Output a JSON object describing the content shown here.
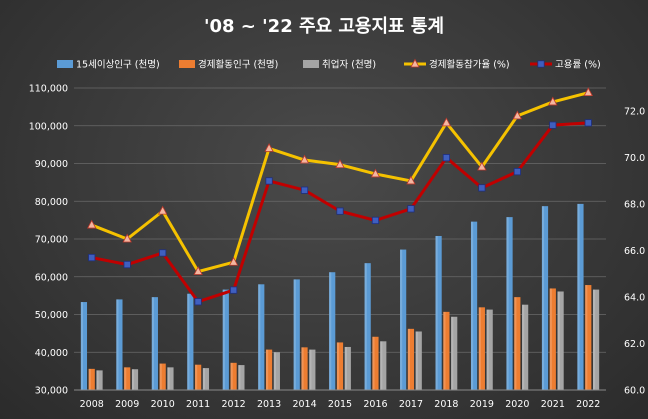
{
  "chart_data": {
    "type": "bar",
    "title": "'08 ~ '22 주요 고용지표 통계",
    "categories": [
      "2008",
      "2009",
      "2010",
      "2011",
      "2012",
      "2013",
      "2014",
      "2015",
      "2016",
      "2017",
      "2018",
      "2019",
      "2020",
      "2021",
      "2022"
    ],
    "y_left": {
      "ylim": [
        30000,
        110000
      ],
      "ticks": [
        "30,000",
        "40,000",
        "50,000",
        "60,000",
        "70,000",
        "80,000",
        "90,000",
        "100,000",
        "110,000"
      ]
    },
    "y_right": {
      "ylim": [
        60.0,
        73.0
      ],
      "ticks": [
        "60.0",
        "62.0",
        "64.0",
        "66.0",
        "68.0",
        "70.0",
        "72.0"
      ]
    },
    "grid": true,
    "legend_position": "top",
    "series": [
      {
        "name": "15세이상인구 (천명)",
        "kind": "bar",
        "axis": "left",
        "color": "#5b9bd5",
        "values": [
          53300,
          54000,
          54600,
          55500,
          56600,
          58000,
          59300,
          61200,
          63600,
          67200,
          70800,
          74600,
          75800,
          78700,
          79300
        ]
      },
      {
        "name": "경제활동인구 (천명)",
        "kind": "bar",
        "axis": "left",
        "color": "#ed7d31",
        "values": [
          35600,
          36000,
          37000,
          36700,
          37200,
          40700,
          41300,
          42600,
          44100,
          46200,
          50700,
          51900,
          54600,
          56900,
          57800
        ]
      },
      {
        "name": "취업자 (천명)",
        "kind": "bar",
        "axis": "left",
        "color": "#a5a5a5",
        "values": [
          35200,
          35500,
          36000,
          35800,
          36600,
          40000,
          40700,
          41400,
          42900,
          45500,
          49400,
          51300,
          52600,
          56100,
          56600
        ]
      },
      {
        "name": "경제활동참가율 (%)",
        "kind": "line",
        "axis": "right",
        "color": "#f5c200",
        "marker": "triangle",
        "values": [
          67.1,
          66.5,
          67.7,
          65.1,
          65.5,
          70.4,
          69.9,
          69.7,
          69.3,
          69.0,
          71.5,
          69.6,
          71.8,
          72.4,
          72.8
        ]
      },
      {
        "name": "고용률 (%)",
        "kind": "line",
        "axis": "right",
        "color": "#c00000",
        "marker": "square",
        "values": [
          65.7,
          65.4,
          65.9,
          63.8,
          64.3,
          69.0,
          68.6,
          67.7,
          67.3,
          67.8,
          70.0,
          68.7,
          69.4,
          71.4,
          71.5
        ]
      }
    ]
  }
}
